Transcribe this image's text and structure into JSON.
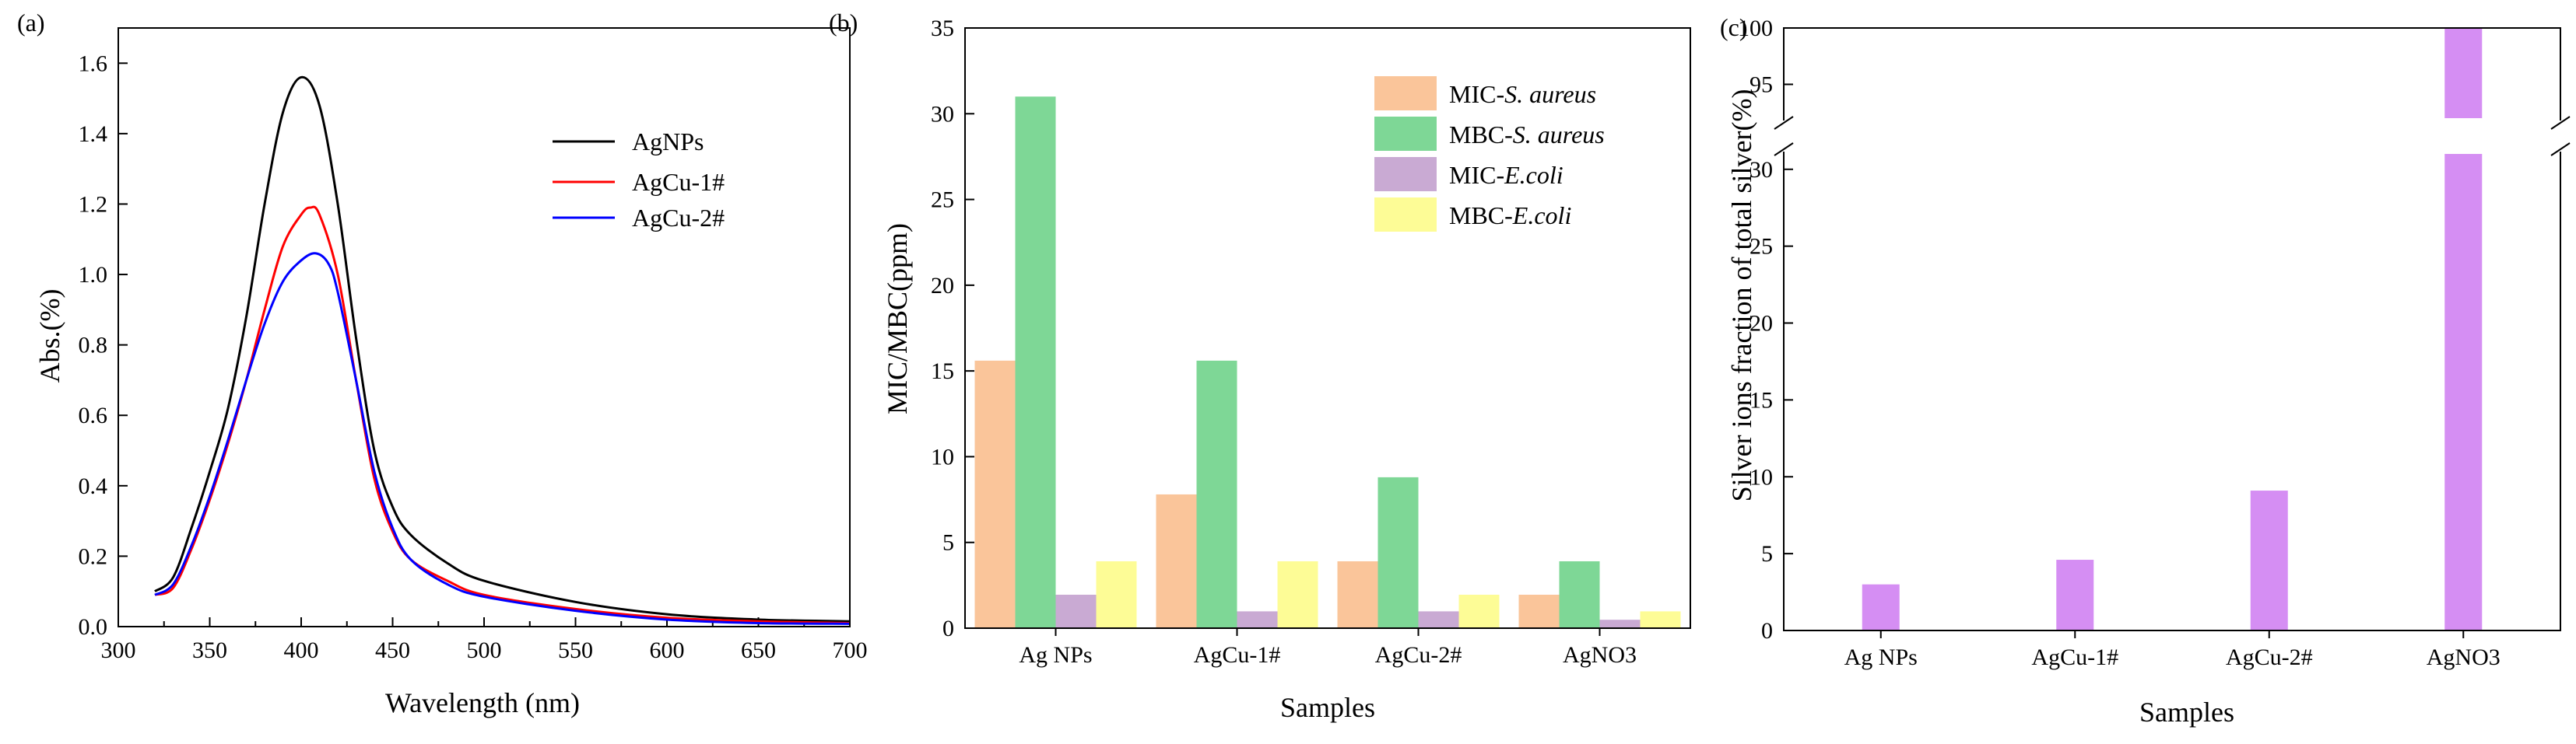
{
  "chart_data": [
    {
      "panel_label": "(a)",
      "type": "line",
      "xlabel": "Wavelength (nm)",
      "ylabel": "Abs.(%)",
      "xlim": [
        300,
        700
      ],
      "ylim": [
        0,
        1.7
      ],
      "xticks": [
        300,
        350,
        400,
        450,
        500,
        550,
        600,
        650,
        700
      ],
      "yticks": [
        "0.0",
        "0.2",
        "0.4",
        "0.6",
        "0.8",
        "1.0",
        "1.2",
        "1.4",
        "1.6"
      ],
      "legend_position": "top-right",
      "series": [
        {
          "name": "AgNPs",
          "color": "#000000",
          "x": [
            320,
            330,
            340,
            350,
            360,
            370,
            380,
            390,
            400,
            410,
            420,
            430,
            440,
            450,
            460,
            480,
            500,
            550,
            600,
            650,
            700
          ],
          "y": [
            0.1,
            0.14,
            0.28,
            0.44,
            0.62,
            0.88,
            1.2,
            1.46,
            1.56,
            1.48,
            1.2,
            0.82,
            0.5,
            0.34,
            0.26,
            0.18,
            0.13,
            0.07,
            0.035,
            0.02,
            0.015
          ]
        },
        {
          "name": "AgCu-1#",
          "color": "#ff0000",
          "x": [
            320,
            330,
            340,
            350,
            360,
            370,
            380,
            390,
            400,
            405,
            410,
            420,
            430,
            440,
            450,
            460,
            480,
            500,
            550,
            600,
            650,
            700
          ],
          "y": [
            0.09,
            0.11,
            0.22,
            0.36,
            0.52,
            0.7,
            0.9,
            1.08,
            1.17,
            1.19,
            1.17,
            1.0,
            0.7,
            0.42,
            0.27,
            0.19,
            0.13,
            0.09,
            0.05,
            0.025,
            0.015,
            0.01
          ]
        },
        {
          "name": "AgCu-2#",
          "color": "#0000ff",
          "x": [
            320,
            330,
            340,
            350,
            360,
            370,
            380,
            390,
            400,
            408,
            415,
            420,
            430,
            440,
            450,
            460,
            480,
            500,
            550,
            600,
            650,
            700
          ],
          "y": [
            0.09,
            0.12,
            0.23,
            0.37,
            0.53,
            0.7,
            0.86,
            0.98,
            1.04,
            1.06,
            1.03,
            0.95,
            0.7,
            0.44,
            0.28,
            0.19,
            0.12,
            0.085,
            0.045,
            0.02,
            0.01,
            0.008
          ]
        }
      ]
    },
    {
      "panel_label": "(b)",
      "type": "bar",
      "xlabel": "Samples",
      "ylabel": "MIC/MBC(ppm)",
      "ylim": [
        0,
        35
      ],
      "yticks": [
        "0",
        "5",
        "10",
        "15",
        "20",
        "25",
        "30",
        "35"
      ],
      "categories": [
        "Ag NPs",
        "AgCu-1#",
        "AgCu-2#",
        "AgNO3"
      ],
      "legend_position": "top-right",
      "series": [
        {
          "name": "MIC-S. aureus",
          "name_prefix": "MIC-",
          "name_italic": "S. aureus",
          "color": "#fac59a",
          "values": [
            15.6,
            7.8,
            3.9,
            1.95
          ]
        },
        {
          "name": "MBC-S. aureus",
          "name_prefix": "MBC-",
          "name_italic": "S. aureus",
          "color": "#7ed796",
          "values": [
            31.0,
            15.6,
            8.8,
            3.9
          ]
        },
        {
          "name": "MIC-E.coli",
          "name_prefix": "MIC-",
          "name_italic": "E.coli",
          "color": "#c9aad3",
          "values": [
            1.95,
            0.98,
            0.98,
            0.49
          ]
        },
        {
          "name": "MBC-E.coli",
          "name_prefix": "MBC-",
          "name_italic": "E.coli",
          "color": "#fdfc96",
          "values": [
            3.9,
            3.9,
            1.95,
            0.98
          ]
        }
      ]
    },
    {
      "panel_label": "(c)",
      "type": "bar",
      "xlabel": "Samples",
      "ylabel": "Silver ions fraction of total silver(%)",
      "categories": [
        "Ag NPs",
        "AgCu-1#",
        "AgCu-2#",
        "AgNO3"
      ],
      "values": [
        3.0,
        4.6,
        9.1,
        100
      ],
      "color": "#d58ef3",
      "axis_break": {
        "lower_range": [
          0,
          31
        ],
        "upper_range": [
          92,
          100
        ]
      },
      "yticks_lower": [
        "0",
        "5",
        "10",
        "15",
        "20",
        "25",
        "30"
      ],
      "yticks_upper": [
        "95",
        "100"
      ]
    }
  ]
}
